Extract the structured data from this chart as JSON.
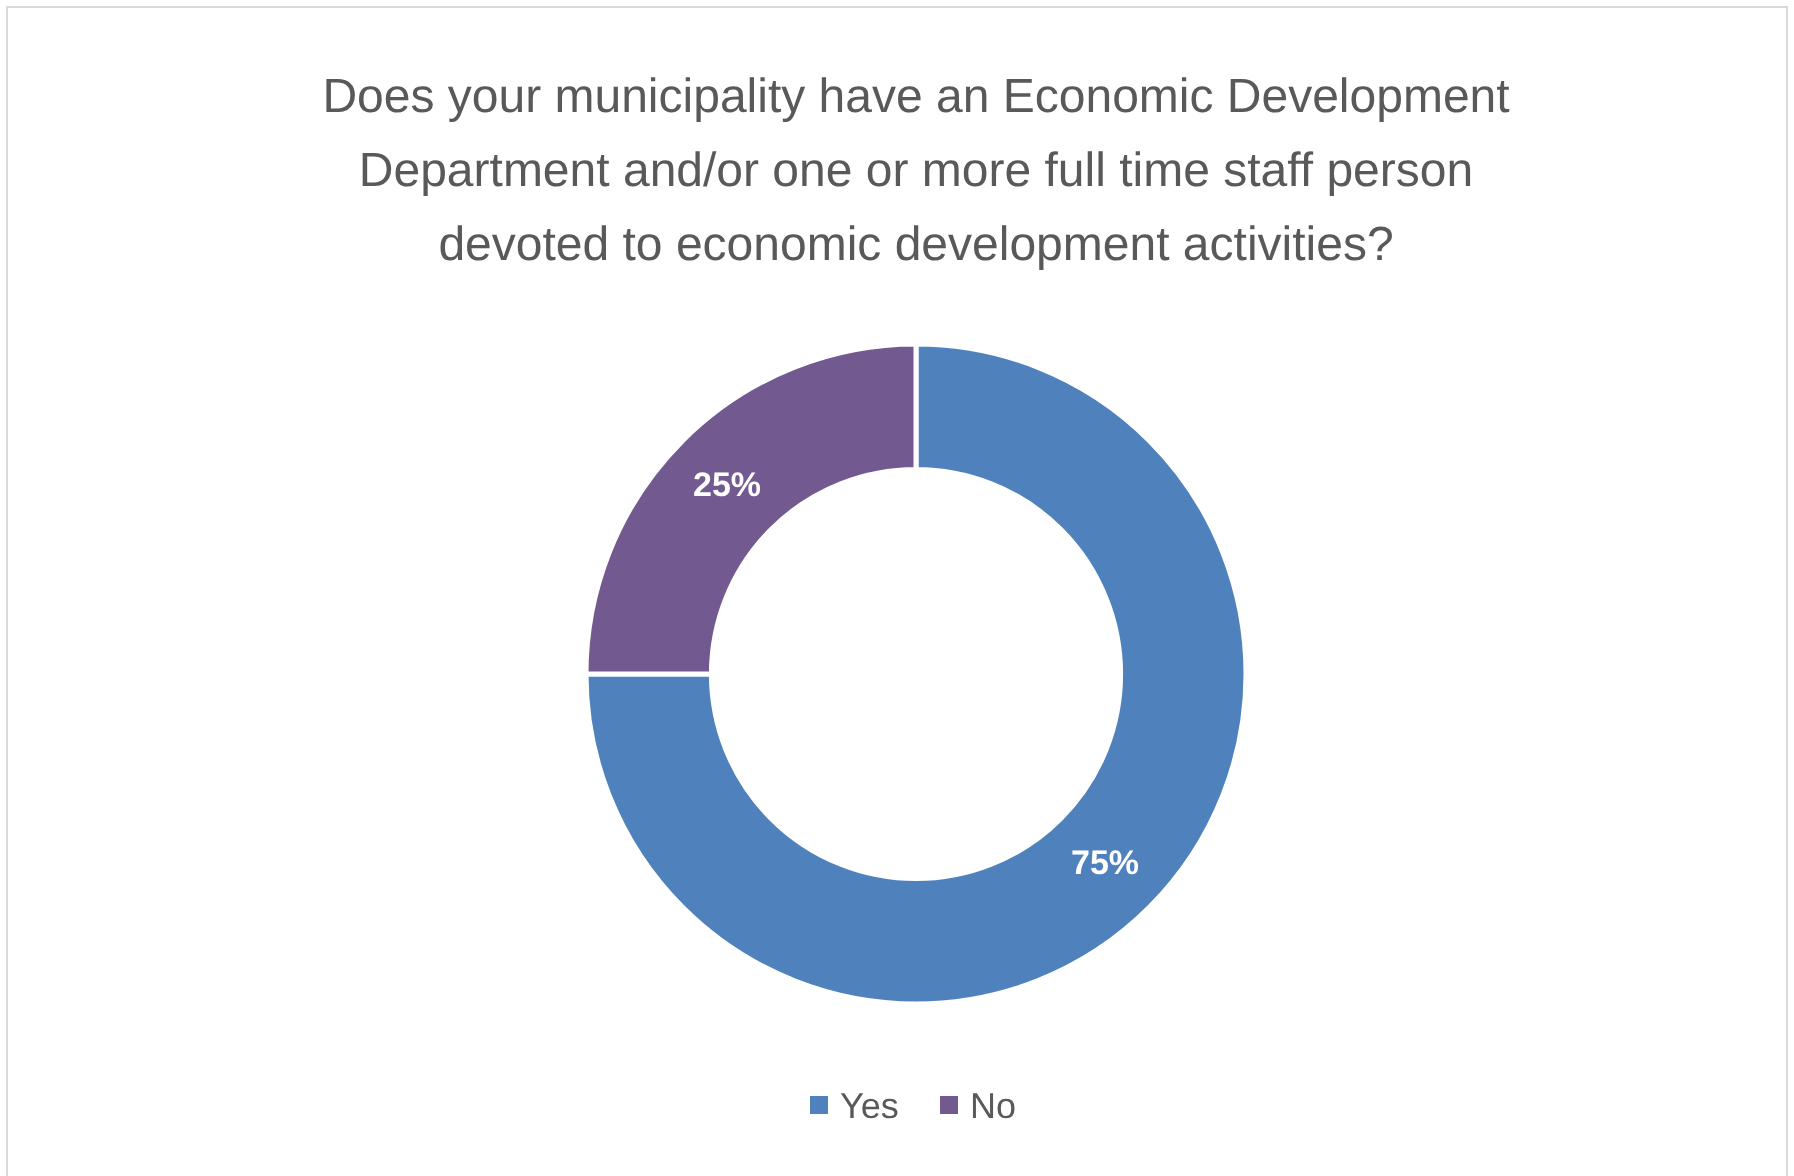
{
  "chart_data": {
    "type": "donut",
    "title": "Does your municipality have an Economic Development Department and/or one or more full time staff person devoted to economic development activities?",
    "categories": [
      "Yes",
      "No"
    ],
    "values": [
      75,
      25
    ],
    "colors": [
      "#4f81bd",
      "#72598f"
    ],
    "value_labels": [
      "75%",
      "25%"
    ],
    "legend": "bottom"
  }
}
